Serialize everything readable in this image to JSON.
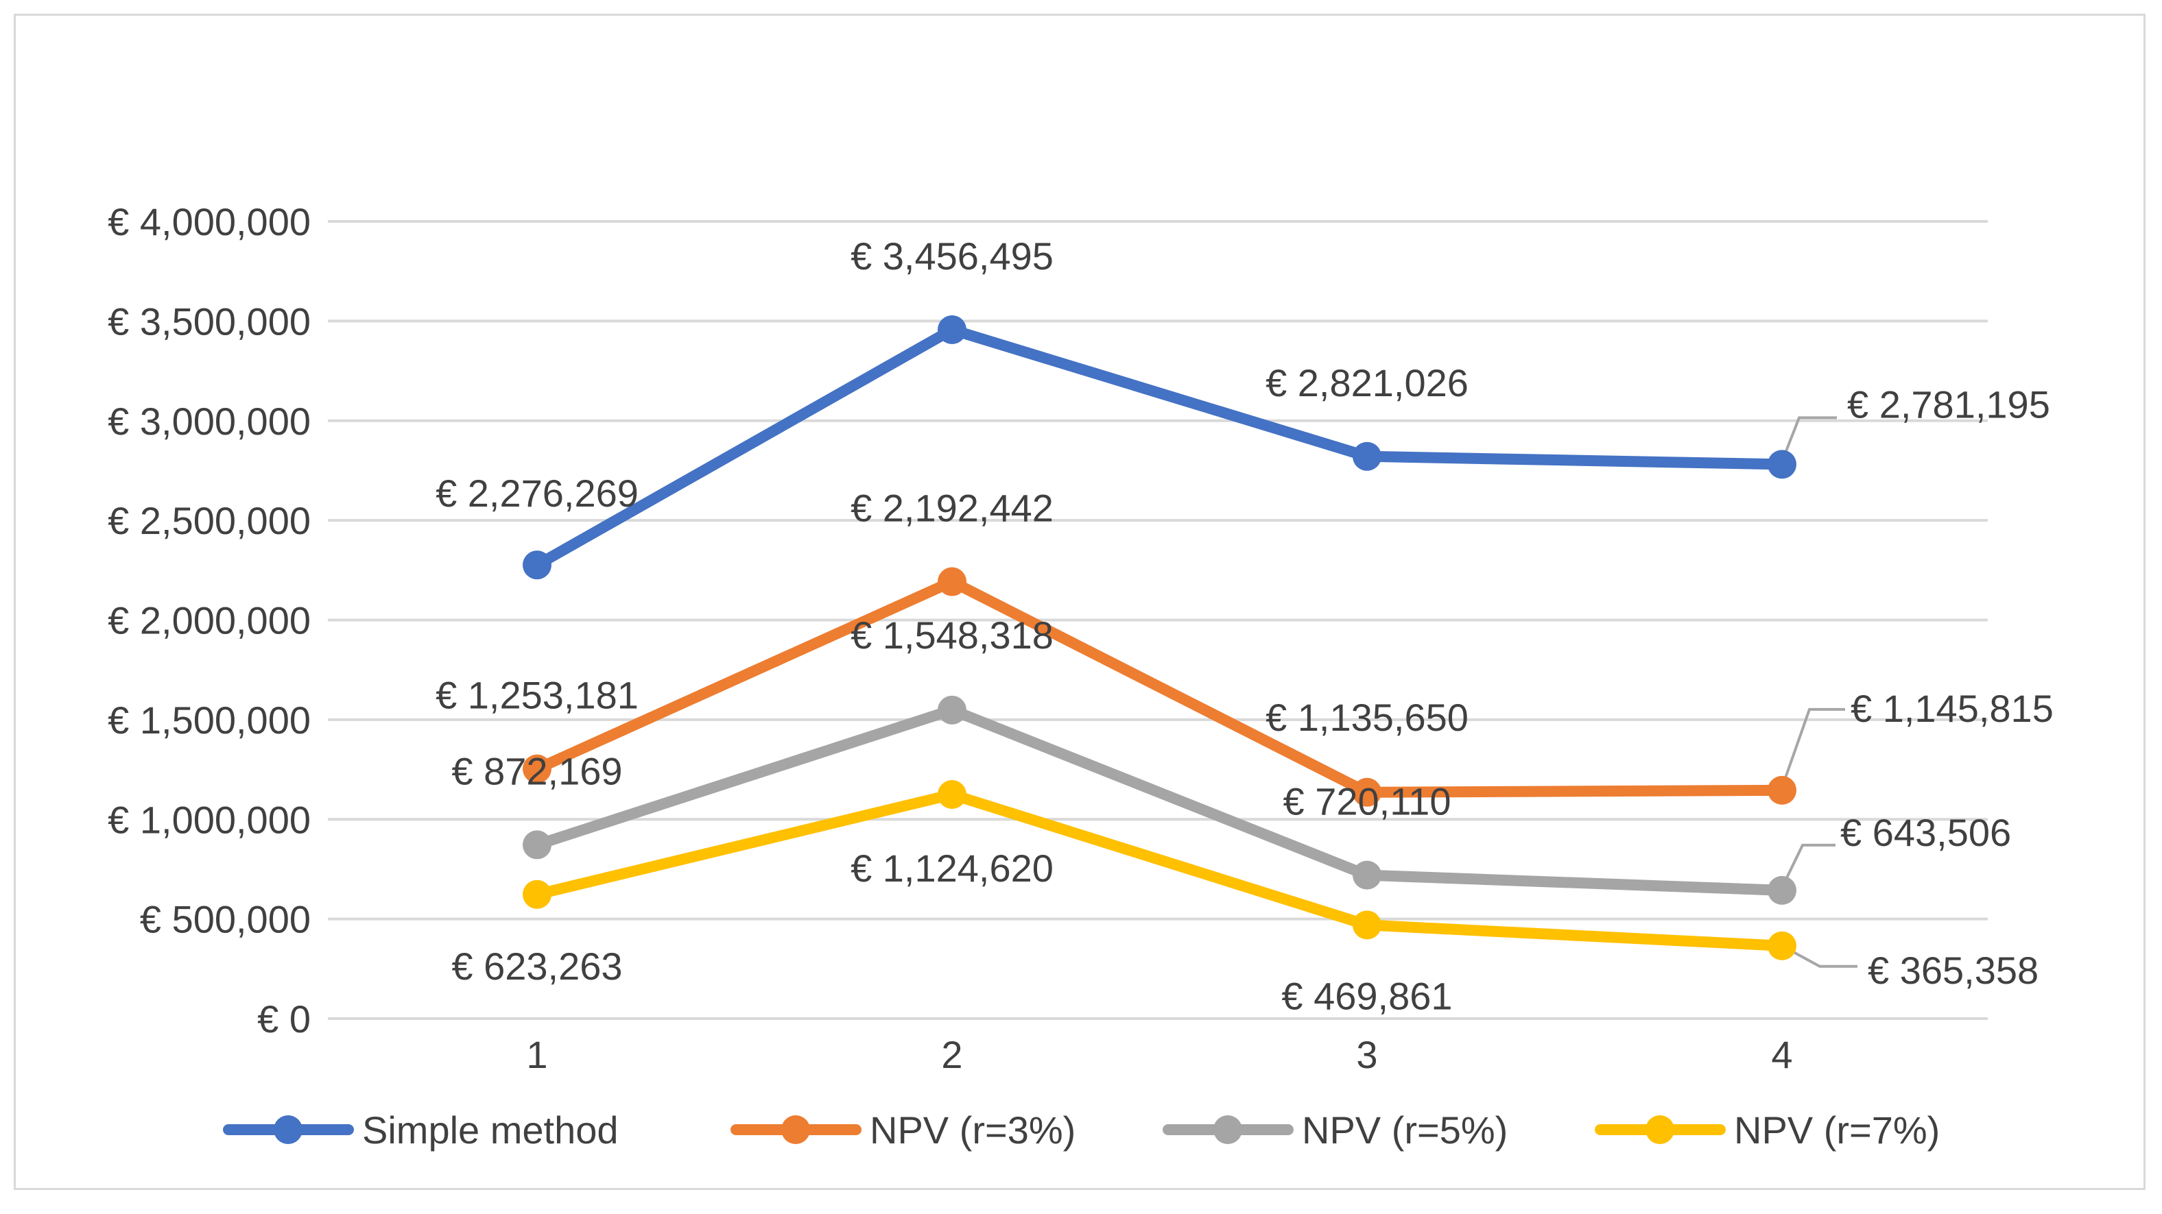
{
  "chart_data": {
    "type": "line",
    "title": "",
    "xlabel": "",
    "ylabel": "",
    "categories": [
      "1",
      "2",
      "3",
      "4"
    ],
    "ylim": [
      0,
      4000000
    ],
    "yticks": [
      0,
      500000,
      1000000,
      1500000,
      2000000,
      2500000,
      3000000,
      3500000,
      4000000
    ],
    "ytick_labels": [
      "€ 0",
      "€ 500,000",
      "€ 1,000,000",
      "€ 1,500,000",
      "€ 2,000,000",
      "€ 2,500,000",
      "€ 3,000,000",
      "€ 3,500,000",
      "€ 4,000,000"
    ],
    "grid": true,
    "legend_position": "bottom",
    "series": [
      {
        "name": "Simple method",
        "color": "#4472c4",
        "values": [
          2276269,
          3456495,
          2821026,
          2781195
        ],
        "labels": [
          "€ 2,276,269",
          "€ 3,456,495",
          "€ 2,821,026",
          "€ 2,781,195"
        ]
      },
      {
        "name": "NPV (r=3%)",
        "color": "#ed7d31",
        "values": [
          1253181,
          2192442,
          1135650,
          1145815
        ],
        "labels": [
          "€ 1,253,181",
          "€ 2,192,442",
          "€ 1,135,650",
          "€ 1,145,815"
        ]
      },
      {
        "name": "NPV (r=5%)",
        "color": "#a5a5a5",
        "values": [
          872169,
          1548318,
          720110,
          643506
        ],
        "labels": [
          "€ 872,169",
          "€ 1,548,318",
          "€ 720,110",
          "€ 643,506"
        ]
      },
      {
        "name": "NPV (r=7%)",
        "color": "#ffc000",
        "values": [
          623263,
          1124620,
          469861,
          365358
        ],
        "labels": [
          "€ 623,263",
          "€ 1,124,620",
          "€ 469,861",
          "€ 365,358"
        ]
      }
    ]
  }
}
